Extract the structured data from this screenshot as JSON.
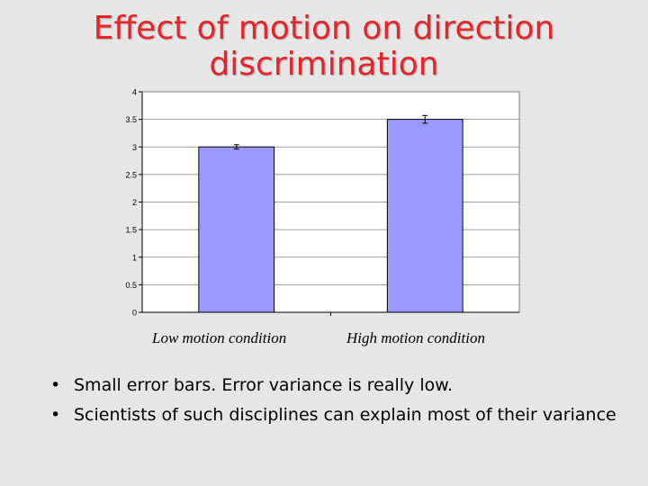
{
  "title_lines": [
    "Effect of motion on direction",
    "discrimination"
  ],
  "bullets": [
    "Small error bars. Error variance is really low.",
    "Scientists of such disciplines can explain most of their variance"
  ],
  "bullet_glyph": "•",
  "colors": {
    "title": "#e8232a",
    "bar": "#9999ff",
    "plot_bg": "#ffffff",
    "grid": "#808080"
  },
  "chart_data": {
    "type": "bar",
    "categories": [
      "Low motion condition",
      "High motion condition"
    ],
    "values": [
      3.0,
      3.5
    ],
    "error": [
      0.04,
      0.07
    ],
    "ylim": [
      0,
      4
    ],
    "yticks": [
      "0",
      "0.5",
      "1",
      "1.5",
      "2",
      "2.5",
      "3",
      "3.5",
      "4"
    ],
    "grid": true,
    "legend": "none",
    "title": "",
    "xlabel": "",
    "ylabel": ""
  }
}
